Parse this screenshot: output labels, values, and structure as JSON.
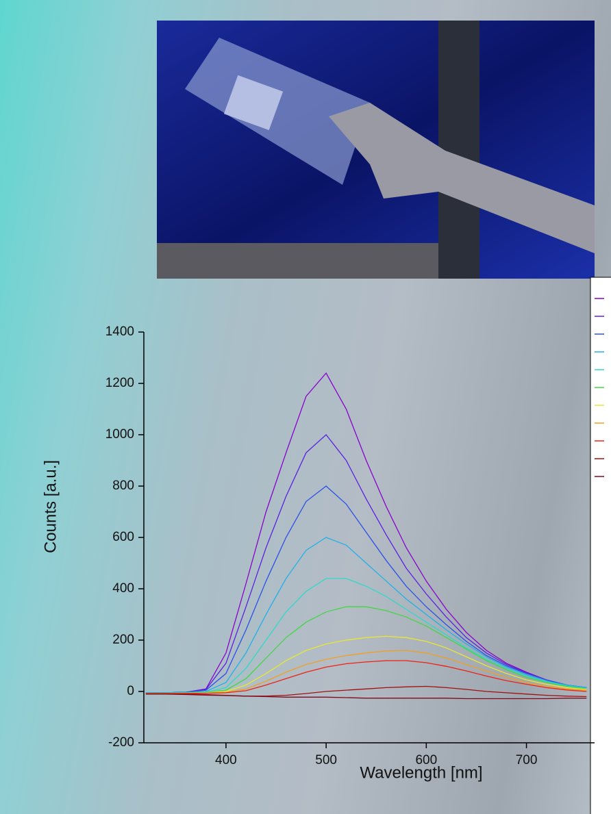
{
  "chart_data": {
    "type": "line",
    "x_label": "Wavelength [nm]",
    "y_label": "Counts [a.u.]",
    "xlim": [
      318,
      768
    ],
    "ylim": [
      -200,
      1400
    ],
    "xticks": [
      400,
      500,
      600,
      700
    ],
    "yticks": [
      -200,
      0,
      200,
      400,
      600,
      800,
      1000,
      1200,
      1400
    ],
    "x": [
      320,
      340,
      360,
      380,
      400,
      420,
      440,
      460,
      480,
      500,
      520,
      540,
      560,
      580,
      600,
      620,
      640,
      660,
      680,
      700,
      720,
      740,
      760
    ],
    "series": [
      {
        "color": "#8800cc",
        "values": [
          -5,
          -5,
          -3,
          10,
          150,
          420,
          700,
          930,
          1150,
          1240,
          1100,
          900,
          720,
          560,
          430,
          320,
          230,
          160,
          110,
          75,
          45,
          25,
          15
        ]
      },
      {
        "color": "#5a20e0",
        "values": [
          -5,
          -5,
          -3,
          8,
          110,
          330,
          560,
          760,
          930,
          1000,
          900,
          750,
          610,
          480,
          380,
          290,
          210,
          150,
          105,
          72,
          45,
          25,
          15
        ]
      },
      {
        "color": "#2a50e8",
        "values": [
          -5,
          -5,
          -3,
          5,
          70,
          240,
          430,
          600,
          740,
          800,
          730,
          620,
          510,
          410,
          330,
          260,
          195,
          140,
          100,
          70,
          45,
          25,
          15
        ]
      },
      {
        "color": "#20b0e8",
        "values": [
          -5,
          -5,
          -4,
          0,
          35,
          150,
          300,
          440,
          550,
          600,
          570,
          500,
          430,
          360,
          300,
          240,
          185,
          135,
          95,
          65,
          40,
          25,
          15
        ]
      },
      {
        "color": "#30d8c8",
        "values": [
          -6,
          -6,
          -5,
          -3,
          15,
          90,
          200,
          310,
          390,
          440,
          440,
          410,
          370,
          320,
          270,
          220,
          170,
          125,
          90,
          60,
          38,
          22,
          12
        ]
      },
      {
        "color": "#40d840",
        "values": [
          -7,
          -7,
          -6,
          -4,
          5,
          50,
          130,
          210,
          270,
          310,
          330,
          330,
          315,
          290,
          255,
          210,
          165,
          120,
          85,
          55,
          35,
          20,
          10
        ]
      },
      {
        "color": "#e8e830",
        "values": [
          -8,
          -8,
          -7,
          -5,
          0,
          25,
          70,
          120,
          160,
          185,
          200,
          210,
          215,
          210,
          195,
          170,
          135,
          100,
          70,
          45,
          28,
          15,
          8
        ]
      },
      {
        "color": "#f0a020",
        "values": [
          -8,
          -8,
          -7,
          -6,
          -3,
          10,
          40,
          75,
          105,
          125,
          140,
          150,
          158,
          160,
          150,
          130,
          105,
          80,
          55,
          35,
          20,
          10,
          5
        ]
      },
      {
        "color": "#f02010",
        "values": [
          -8,
          -8,
          -8,
          -7,
          -5,
          3,
          25,
          50,
          75,
          95,
          108,
          115,
          120,
          120,
          112,
          98,
          80,
          60,
          42,
          28,
          15,
          6,
          0
        ]
      },
      {
        "color": "#a01010",
        "values": [
          -10,
          -10,
          -10,
          -12,
          -15,
          -18,
          -18,
          -15,
          -8,
          0,
          5,
          10,
          15,
          18,
          20,
          15,
          8,
          0,
          -5,
          -10,
          -15,
          -18,
          -20
        ]
      },
      {
        "color": "#800818",
        "values": [
          -10,
          -10,
          -12,
          -14,
          -16,
          -18,
          -20,
          -22,
          -22,
          -22,
          -24,
          -26,
          -26,
          -26,
          -26,
          -26,
          -28,
          -28,
          -28,
          -28,
          -28,
          -26,
          -26
        ]
      }
    ]
  }
}
